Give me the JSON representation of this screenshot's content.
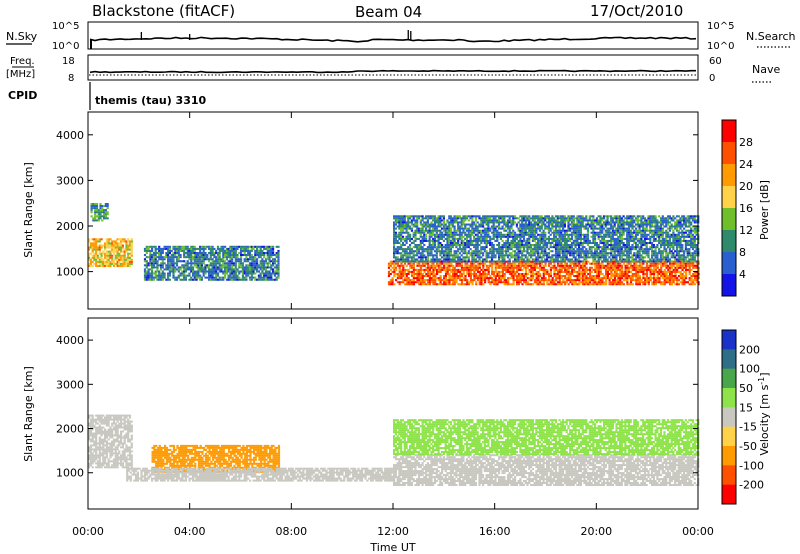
{
  "header": {
    "station": "Blackstone (fitACF)",
    "beam": "Beam 04",
    "date": "17/Oct/2010"
  },
  "noise_panel": {
    "left_label": "N.Sky",
    "right_label": "N.Search",
    "left_ticks": [
      "10^5",
      "10^0"
    ],
    "right_ticks": [
      "10^5",
      "10^0"
    ]
  },
  "freq_panel": {
    "left_label_top": "Freq.",
    "left_label_unit": "[MHz]",
    "right_label": "Nave",
    "left_ticks": [
      "18",
      "8"
    ],
    "right_ticks": [
      "60",
      "0"
    ]
  },
  "cpid": {
    "label": "CPID",
    "text": "themis (tau) 3310"
  },
  "power_panel": {
    "ylabel": "Slant Range [km]",
    "yticks": [
      "4000",
      "3000",
      "2000",
      "1000"
    ],
    "colorbar_label": "Power [dB]",
    "colorbar_ticks": [
      "28",
      "24",
      "20",
      "16",
      "12",
      "8",
      "4"
    ],
    "colorbar_colors": [
      "#ff0000",
      "#ff5000",
      "#ff9a00",
      "#ffd24a",
      "#6ebf2a",
      "#2f8a6c",
      "#2a5fd0",
      "#1414e6"
    ]
  },
  "velocity_panel": {
    "ylabel": "Slant Range [km]",
    "yticks": [
      "4000",
      "3000",
      "2000",
      "1000"
    ],
    "colorbar_label": "Velocity [m s",
    "colorbar_label_sup": "-1",
    "colorbar_label_end": "]",
    "colorbar_ticks": [
      "200",
      "100",
      "50",
      "15",
      "-15",
      "-50",
      "-100",
      "-200"
    ],
    "colorbar_colors": [
      "#1a32c8",
      "#2e6e86",
      "#4aa64a",
      "#8ee24a",
      "#c8c8c0",
      "#ffd24a",
      "#ff9a00",
      "#ff5000",
      "#ff0000"
    ]
  },
  "xaxis": {
    "label": "Time UT",
    "ticks": [
      "00:00",
      "04:00",
      "08:00",
      "12:00",
      "16:00",
      "20:00",
      "00:00"
    ]
  },
  "chart_data": [
    {
      "type": "heatmap",
      "title": "Power [dB]",
      "xlabel": "Time UT",
      "ylabel": "Slant Range [km]",
      "xlim_hours": [
        0,
        24
      ],
      "ylim": [
        180,
        4500
      ],
      "value_range": [
        0,
        30
      ],
      "regions": [
        {
          "t": [
            0.0,
            1.7
          ],
          "r": [
            1100,
            1700
          ],
          "value": 18
        },
        {
          "t": [
            0.1,
            0.8
          ],
          "r": [
            2100,
            2500
          ],
          "value": 10
        },
        {
          "t": [
            2.2,
            7.5
          ],
          "r": [
            800,
            1550
          ],
          "value": 8
        },
        {
          "t": [
            11.8,
            24.0
          ],
          "r": [
            700,
            1200
          ],
          "value": 24
        },
        {
          "t": [
            12.0,
            24.0
          ],
          "r": [
            1200,
            2200
          ],
          "value": 8
        }
      ]
    },
    {
      "type": "heatmap",
      "title": "Velocity [m s-1]",
      "xlabel": "Time UT",
      "ylabel": "Slant Range [km]",
      "xlim_hours": [
        0,
        24
      ],
      "ylim": [
        180,
        4500
      ],
      "value_range": [
        -200,
        200
      ],
      "regions": [
        {
          "t": [
            0.0,
            1.7
          ],
          "r": [
            1100,
            2300
          ],
          "value": 0
        },
        {
          "t": [
            2.5,
            7.5
          ],
          "r": [
            1000,
            1600
          ],
          "value": -60
        },
        {
          "t": [
            1.5,
            12.0
          ],
          "r": [
            800,
            1100
          ],
          "value": 0
        },
        {
          "t": [
            12.0,
            24.0
          ],
          "r": [
            700,
            1400
          ],
          "value": 0
        },
        {
          "t": [
            12.0,
            24.0
          ],
          "r": [
            1400,
            2200
          ],
          "value": 30
        }
      ]
    }
  ]
}
